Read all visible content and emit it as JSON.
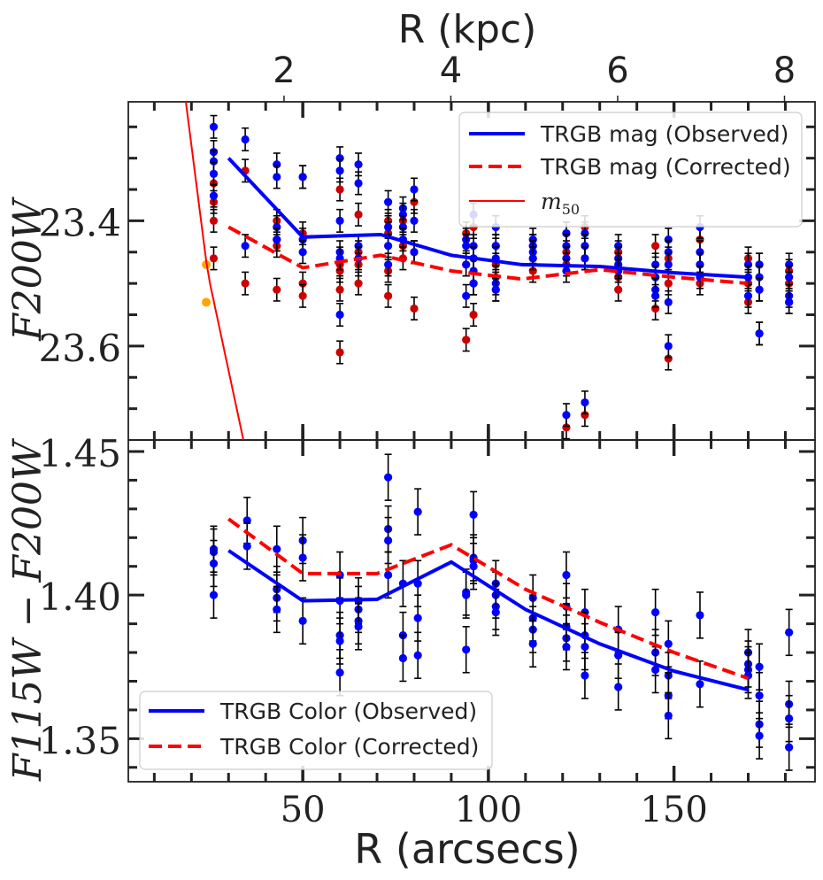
{
  "chart_data": [
    {
      "panel": "top",
      "type": "scatter",
      "title": "",
      "xlabel": "",
      "ylabel": "F200W",
      "top_axis_label": "R (kpc)",
      "top_ticks": [
        "2",
        "4",
        "6",
        "8"
      ],
      "top_tick_values": [
        2,
        4,
        6,
        8
      ],
      "kpc_per_arcsec": 0.0445,
      "xlim": [
        3,
        188
      ],
      "ylim": [
        23.75,
        23.21
      ],
      "yticks": [
        23.4,
        23.6
      ],
      "ytick_labels": [
        "23.4",
        "23.6"
      ],
      "legend": {
        "position": "top-right",
        "entries": [
          "TRGB mag (Observed)",
          "TRGB mag (Corrected)",
          "$m_{50}$"
        ]
      },
      "legend_m50_main": "m",
      "legend_m50_sub": "50",
      "series": [
        {
          "name": "TRGB mag (Observed)",
          "style": "solid",
          "color": "#0000ff",
          "x": [
            30,
            50,
            71,
            90,
            109,
            130,
            150,
            170
          ],
          "values": [
            23.3,
            23.426,
            23.422,
            23.455,
            23.47,
            23.473,
            23.483,
            23.49
          ]
        },
        {
          "name": "TRGB mag (Corrected)",
          "style": "dashed",
          "color": "#ff0000",
          "x": [
            30,
            50,
            71,
            90,
            109,
            130,
            150,
            170
          ],
          "values": [
            23.41,
            23.475,
            23.455,
            23.48,
            23.493,
            23.478,
            23.49,
            23.5
          ]
        },
        {
          "name": "$m_{50}$",
          "style": "solid-thin",
          "color": "#ff0000",
          "x": [
            18.5,
            24,
            25,
            34
          ],
          "values": [
            23.21,
            23.465,
            23.5,
            23.75
          ]
        }
      ],
      "m50_points": {
        "color": "#ffa500",
        "x": [
          24,
          24
        ],
        "values": [
          23.47,
          23.53
        ]
      },
      "observed_points": {
        "color": "#0000ff",
        "yerr": 0.018,
        "x": [
          26,
          26,
          26,
          26,
          26,
          34.5,
          34.5,
          43,
          43,
          43,
          43,
          50,
          50,
          50,
          50,
          60,
          60,
          60,
          60,
          60,
          60,
          65,
          65,
          65,
          65,
          73,
          73,
          73,
          73,
          77,
          77,
          77,
          77,
          80,
          80,
          80,
          94,
          94,
          94,
          94,
          96,
          96,
          96,
          96,
          96,
          102,
          102,
          102,
          102,
          102,
          112,
          112,
          112,
          112,
          121,
          121,
          121,
          121,
          121,
          126,
          126,
          126,
          126,
          135,
          135,
          135,
          135,
          145,
          145,
          145,
          145,
          148.5,
          148.5,
          148.5,
          148.5,
          148.5,
          157,
          157,
          157,
          157,
          170,
          170,
          170,
          173,
          173,
          173,
          173,
          181,
          181,
          181,
          181
        ],
        "y": [
          23.25,
          23.29,
          23.305,
          23.325,
          23.36,
          23.27,
          23.44,
          23.31,
          23.33,
          23.41,
          23.43,
          23.33,
          23.33,
          23.43,
          23.45,
          23.3,
          23.32,
          23.4,
          23.45,
          23.46,
          23.55,
          23.31,
          23.34,
          23.44,
          23.46,
          23.37,
          23.41,
          23.44,
          23.47,
          23.38,
          23.39,
          23.41,
          23.43,
          23.35,
          23.4,
          23.45,
          23.43,
          23.44,
          23.47,
          23.52,
          23.39,
          23.44,
          23.46,
          23.48,
          23.5,
          23.41,
          23.44,
          23.46,
          23.5,
          23.51,
          23.44,
          23.43,
          23.45,
          23.46,
          23.42,
          23.44,
          23.46,
          23.48,
          23.71,
          23.42,
          23.44,
          23.46,
          23.69,
          23.44,
          23.46,
          23.47,
          23.48,
          23.47,
          23.49,
          23.51,
          23.52,
          23.43,
          23.45,
          23.47,
          23.53,
          23.6,
          23.41,
          23.45,
          23.47,
          23.49,
          23.47,
          23.49,
          23.52,
          23.47,
          23.49,
          23.51,
          23.58,
          23.47,
          23.49,
          23.52,
          23.53
        ]
      },
      "corrected_points": {
        "color": "#cc0000",
        "yerr": 0.018,
        "x": [
          26,
          26,
          26,
          26,
          34.5,
          34.5,
          43,
          43,
          43,
          43,
          50,
          50,
          50,
          60,
          60,
          60,
          60,
          60,
          65,
          65,
          65,
          65,
          73,
          73,
          73,
          73,
          77,
          77,
          77,
          80,
          80,
          80,
          94,
          94,
          94,
          96,
          96,
          96,
          96,
          102,
          102,
          102,
          102,
          112,
          112,
          112,
          121,
          121,
          121,
          121,
          126,
          126,
          126,
          135,
          135,
          135,
          145,
          145,
          145,
          148.5,
          148.5,
          148.5,
          157,
          157,
          157,
          170,
          170,
          170,
          173,
          173,
          173,
          181,
          181,
          181
        ],
        "y": [
          23.34,
          23.37,
          23.4,
          23.46,
          23.32,
          23.5,
          23.4,
          23.43,
          23.44,
          23.51,
          23.42,
          23.5,
          23.52,
          23.35,
          23.47,
          23.48,
          23.51,
          23.61,
          23.39,
          23.45,
          23.47,
          23.5,
          23.4,
          23.42,
          23.48,
          23.52,
          23.4,
          23.44,
          23.46,
          23.37,
          23.45,
          23.54,
          23.42,
          23.47,
          23.59,
          23.41,
          23.46,
          23.5,
          23.55,
          23.44,
          23.47,
          23.49,
          23.51,
          23.44,
          23.46,
          23.48,
          23.42,
          23.45,
          23.47,
          23.73,
          23.41,
          23.46,
          23.71,
          23.45,
          23.49,
          23.51,
          23.44,
          23.49,
          23.54,
          23.46,
          23.5,
          23.62,
          23.43,
          23.47,
          23.5,
          23.46,
          23.5,
          23.53,
          23.47,
          23.51,
          23.58,
          23.48,
          23.5,
          23.53
        ]
      }
    },
    {
      "panel": "bottom",
      "type": "scatter",
      "title": "",
      "xlabel": "R (arcsecs)",
      "ylabel": "F115W − F200W",
      "xlim": [
        3,
        188
      ],
      "ylim": [
        1.335,
        1.454
      ],
      "xticks": [
        50,
        100,
        150
      ],
      "xtick_labels": [
        "50",
        "100",
        "150"
      ],
      "yticks": [
        1.35,
        1.4,
        1.45
      ],
      "ytick_labels": [
        "1.35",
        "1.40",
        "1.45"
      ],
      "legend": {
        "position": "bottom-left",
        "entries": [
          "TRGB Color (Observed)",
          "TRGB Color (Corrected)"
        ]
      },
      "series": [
        {
          "name": "TRGB Color (Observed)",
          "style": "solid",
          "color": "#0000ff",
          "x": [
            30,
            50,
            70,
            90,
            110,
            130,
            150,
            170
          ],
          "values": [
            1.4155,
            1.398,
            1.3985,
            1.4115,
            1.395,
            1.383,
            1.3735,
            1.367
          ]
        },
        {
          "name": "TRGB Color (Corrected)",
          "style": "dashed",
          "color": "#ff0000",
          "x": [
            30,
            50,
            70,
            90,
            110,
            130,
            150,
            170
          ],
          "values": [
            1.4265,
            1.4075,
            1.4075,
            1.4175,
            1.402,
            1.3905,
            1.38,
            1.371
          ]
        }
      ],
      "observed_points": {
        "color": "#0000ff",
        "yerr": 0.008,
        "x": [
          26,
          26,
          26,
          26,
          35,
          35,
          43,
          43,
          43,
          43,
          50,
          50,
          50,
          60,
          60,
          60,
          60,
          60,
          65,
          65,
          65,
          65,
          73,
          73,
          73,
          73,
          77,
          77,
          77,
          81,
          81,
          81,
          81,
          94,
          94,
          94,
          96,
          96,
          96,
          96,
          102,
          102,
          102,
          102,
          112,
          112,
          112,
          112,
          121,
          121,
          121,
          121,
          121,
          126,
          126,
          126,
          126,
          135,
          135,
          135,
          145,
          145,
          145,
          148.5,
          148.5,
          148.5,
          148.5,
          157,
          157,
          170,
          170,
          170,
          170,
          173,
          173,
          173,
          173,
          181,
          181,
          181,
          181
        ],
        "y": [
          1.416,
          1.415,
          1.411,
          1.4,
          1.426,
          1.417,
          1.416,
          1.402,
          1.399,
          1.395,
          1.419,
          1.413,
          1.391,
          1.407,
          1.398,
          1.386,
          1.384,
          1.373,
          1.398,
          1.395,
          1.391,
          1.389,
          1.441,
          1.423,
          1.419,
          1.407,
          1.404,
          1.386,
          1.378,
          1.429,
          1.404,
          1.392,
          1.379,
          1.401,
          1.4,
          1.381,
          1.428,
          1.413,
          1.412,
          1.41,
          1.404,
          1.4,
          1.396,
          1.394,
          1.399,
          1.392,
          1.388,
          1.383,
          1.407,
          1.396,
          1.389,
          1.385,
          1.382,
          1.394,
          1.386,
          1.382,
          1.372,
          1.388,
          1.379,
          1.368,
          1.394,
          1.38,
          1.374,
          1.383,
          1.372,
          1.365,
          1.358,
          1.393,
          1.369,
          1.38,
          1.376,
          1.374,
          1.372,
          1.375,
          1.365,
          1.355,
          1.351,
          1.387,
          1.362,
          1.357,
          1.347
        ]
      }
    }
  ]
}
